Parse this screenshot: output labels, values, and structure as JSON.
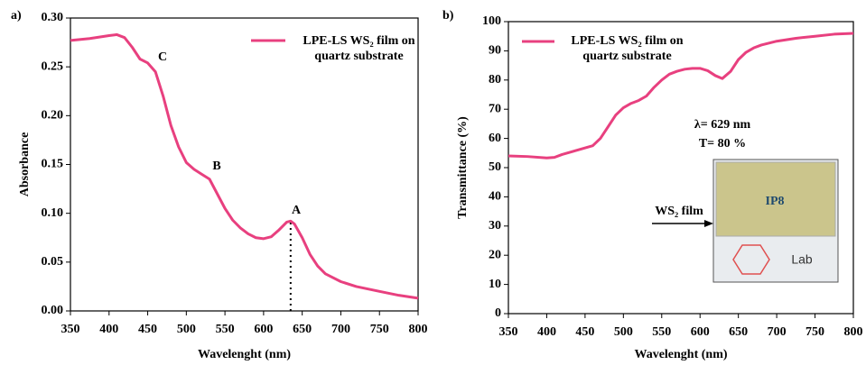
{
  "chart_data": [
    {
      "type": "line",
      "panel_label": "a)",
      "xlabel": "Wavelenght (nm)",
      "ylabel": "Absorbance",
      "xlim": [
        350,
        800
      ],
      "ylim": [
        0,
        0.3
      ],
      "xticks": [
        350,
        400,
        450,
        500,
        550,
        600,
        650,
        700,
        750,
        800
      ],
      "yticks": [
        {
          "value": 0,
          "label": "0.00"
        },
        {
          "value": 0.05,
          "label": "0.05"
        },
        {
          "value": 0.1,
          "label": "0.10"
        },
        {
          "value": 0.15,
          "label": "0.15"
        },
        {
          "value": 0.2,
          "label": "0.20"
        },
        {
          "value": 0.25,
          "label": "0.25"
        },
        {
          "value": 0.3,
          "label": "0.30"
        }
      ],
      "x": [
        350,
        375,
        400,
        410,
        420,
        430,
        440,
        450,
        460,
        470,
        480,
        490,
        500,
        510,
        520,
        530,
        540,
        550,
        560,
        570,
        580,
        590,
        600,
        610,
        620,
        630,
        635,
        640,
        650,
        660,
        670,
        680,
        700,
        720,
        750,
        775,
        800
      ],
      "series": [
        {
          "name": "LPE-LS WS₂ film on quartz substrate",
          "color": "#e8407f",
          "values": [
            0.277,
            0.279,
            0.282,
            0.283,
            0.28,
            0.27,
            0.258,
            0.254,
            0.245,
            0.22,
            0.19,
            0.168,
            0.152,
            0.145,
            0.14,
            0.135,
            0.12,
            0.105,
            0.093,
            0.085,
            0.079,
            0.075,
            0.074,
            0.076,
            0.083,
            0.091,
            0.092,
            0.089,
            0.075,
            0.058,
            0.046,
            0.038,
            0.03,
            0.025,
            0.02,
            0.016,
            0.013
          ]
        }
      ],
      "marker_x": 635,
      "annotations": [
        "C",
        "B",
        "A"
      ]
    },
    {
      "type": "line",
      "panel_label": "b)",
      "xlabel": "Wavelenght (nm)",
      "ylabel": "Transmittance (%)",
      "xlim": [
        350,
        800
      ],
      "ylim": [
        0,
        100
      ],
      "xticks": [
        350,
        400,
        450,
        500,
        550,
        600,
        650,
        700,
        750,
        800
      ],
      "yticks": [
        0,
        10,
        20,
        30,
        40,
        50,
        60,
        70,
        80,
        90,
        100
      ],
      "x": [
        350,
        375,
        400,
        410,
        420,
        440,
        460,
        470,
        480,
        490,
        500,
        510,
        520,
        530,
        540,
        550,
        560,
        570,
        580,
        590,
        600,
        610,
        620,
        629,
        640,
        650,
        660,
        670,
        680,
        700,
        725,
        750,
        775,
        800
      ],
      "series": [
        {
          "name": "LPE-LS WS₂ film on quartz substrate",
          "color": "#e8407f",
          "values": [
            54,
            53.8,
            53.3,
            53.5,
            54.5,
            56,
            57.5,
            60,
            64,
            68,
            70.5,
            72,
            73,
            74.5,
            77.5,
            80,
            82,
            83,
            83.7,
            84,
            84,
            83.2,
            81.5,
            80.5,
            83,
            87,
            89.5,
            91,
            92,
            93.3,
            94.3,
            95,
            95.7,
            96
          ]
        }
      ],
      "annotations": [
        "λ= 629 nm",
        "T= 80 %",
        "WS₂ film"
      ],
      "inset_texts": [
        "IP8",
        "Lab"
      ]
    }
  ]
}
